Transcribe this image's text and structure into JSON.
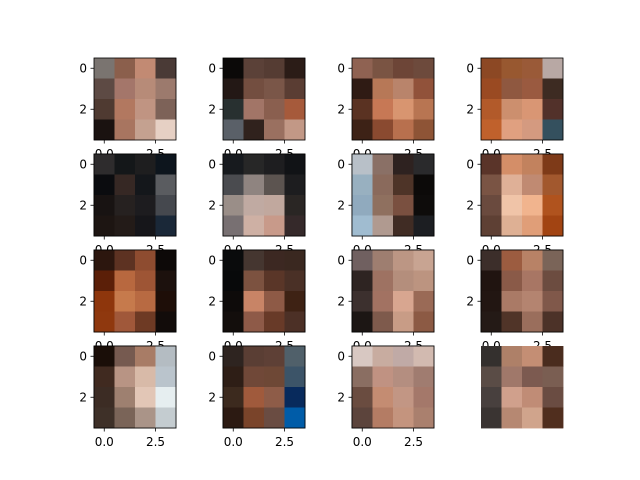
{
  "figure": {
    "background": "#ffffff",
    "axis_color": "#000000"
  },
  "chart_data": [
    {
      "type": "heatmap",
      "grid": false,
      "xlim": [
        -0.5,
        3.5
      ],
      "ylim": [
        3.5,
        -0.5
      ],
      "x_ticks": [],
      "x_tick_labels": [],
      "y_ticks": [
        0,
        2
      ],
      "y_tick_labels": [
        "0",
        "2"
      ],
      "pixels": [
        [
          "#7a7470",
          "#8b5f4c",
          "#c28a73",
          "#4a3a36"
        ],
        [
          "#5d4a44",
          "#a4766a",
          "#b78b78",
          "#9c7a6d"
        ],
        [
          "#4f3a31",
          "#b27860",
          "#c09482",
          "#7d6258"
        ],
        [
          "#1a1210",
          "#a87560",
          "#c4a190",
          "#e6d0c4"
        ]
      ]
    },
    {
      "type": "heatmap",
      "grid": false,
      "xlim": [
        -0.5,
        3.5
      ],
      "ylim": [
        3.5,
        -0.5
      ],
      "x_ticks": [],
      "x_tick_labels": [],
      "y_ticks": [
        0,
        2
      ],
      "y_tick_labels": [
        "0",
        "2"
      ],
      "pixels": [
        [
          "#0b0908",
          "#5b4138",
          "#553c33",
          "#2b1c17"
        ],
        [
          "#231815",
          "#734e40",
          "#7a5648",
          "#5a3d33"
        ],
        [
          "#283030",
          "#a27567",
          "#8a5f4f",
          "#a65a3b"
        ],
        [
          "#5a6068",
          "#30221d",
          "#9a7060",
          "#c29886"
        ]
      ]
    },
    {
      "type": "heatmap",
      "grid": false,
      "xlim": [
        -0.5,
        3.5
      ],
      "ylim": [
        3.5,
        -0.5
      ],
      "x_ticks": [],
      "x_tick_labels": [],
      "y_ticks": [
        0,
        2
      ],
      "y_tick_labels": [
        "0",
        "2"
      ],
      "pixels": [
        [
          "#8f6252",
          "#7a5443",
          "#6d4537",
          "#6d4a3c"
        ],
        [
          "#2f1b14",
          "#b77857",
          "#b9846b",
          "#91523a"
        ],
        [
          "#5a3222",
          "#c77855",
          "#d89570",
          "#b87552"
        ],
        [
          "#3d2216",
          "#8a4a30",
          "#b8704e",
          "#8e5436"
        ]
      ]
    },
    {
      "type": "heatmap",
      "grid": false,
      "xlim": [
        -0.5,
        3.5
      ],
      "ylim": [
        3.5,
        -0.5
      ],
      "x_ticks": [],
      "x_tick_labels": [],
      "y_ticks": [
        0,
        2
      ],
      "y_tick_labels": [
        "0",
        "2"
      ],
      "pixels": [
        [
          "#8c4824",
          "#985830",
          "#9a5a38",
          "#b8a8a4"
        ],
        [
          "#9a4a22",
          "#8f5840",
          "#9a5a40",
          "#3d2b22"
        ],
        [
          "#b25a2a",
          "#cc8f6e",
          "#d99674",
          "#52312a"
        ],
        [
          "#c0612c",
          "#e0a080",
          "#d49a80",
          "#34505e"
        ]
      ]
    },
    {
      "type": "heatmap",
      "grid": false,
      "xlim": [
        -0.5,
        3.5
      ],
      "ylim": [
        3.5,
        -0.5
      ],
      "x_ticks": [],
      "x_tick_labels": [],
      "y_ticks": [
        0,
        2
      ],
      "y_tick_labels": [
        "0",
        "2"
      ],
      "pixels": [
        [
          "#2e2c2d",
          "#141719",
          "#1e1e1f",
          "#0d151d"
        ],
        [
          "#0b0c0f",
          "#362824",
          "#14171b",
          "#5a5c60"
        ],
        [
          "#181312",
          "#262120",
          "#1d1c1f",
          "#45484e"
        ],
        [
          "#1d1512",
          "#231b18",
          "#16161a",
          "#1a2838"
        ]
      ]
    },
    {
      "type": "heatmap",
      "grid": false,
      "xlim": [
        -0.5,
        3.5
      ],
      "ylim": [
        3.5,
        -0.5
      ],
      "x_ticks": [],
      "x_tick_labels": [],
      "y_ticks": [
        0,
        2
      ],
      "y_tick_labels": [
        "0",
        "2"
      ],
      "pixels": [
        [
          "#171a1e",
          "#272727",
          "#1e1e20",
          "#111316"
        ],
        [
          "#4a4b4f",
          "#8f8480",
          "#5c5450",
          "#1d1d1f"
        ],
        [
          "#9a8e88",
          "#c0aaa2",
          "#c1a89e",
          "#2a2624"
        ],
        [
          "#787072",
          "#ceb0a4",
          "#c89a8a",
          "#35292a"
        ]
      ]
    },
    {
      "type": "heatmap",
      "grid": false,
      "xlim": [
        -0.5,
        3.5
      ],
      "ylim": [
        3.5,
        -0.5
      ],
      "x_ticks": [],
      "x_tick_labels": [],
      "y_ticks": [
        0,
        2
      ],
      "y_tick_labels": [
        "0",
        "2"
      ],
      "pixels": [
        [
          "#b8c0c8",
          "#8a7066",
          "#2e2220",
          "#2a2a2c"
        ],
        [
          "#98b0c0",
          "#8a6a5c",
          "#4e3428",
          "#0c0a09"
        ],
        [
          "#90aabe",
          "#8f705f",
          "#7a5040",
          "#0e0c0b"
        ],
        [
          "#a0bcd0",
          "#b09a90",
          "#402c24",
          "#1c1e22"
        ]
      ]
    },
    {
      "type": "heatmap",
      "grid": false,
      "xlim": [
        -0.5,
        3.5
      ],
      "ylim": [
        3.5,
        -0.5
      ],
      "x_ticks": [],
      "x_tick_labels": [],
      "y_ticks": [
        0,
        2
      ],
      "y_tick_labels": [
        "0",
        "2"
      ],
      "pixels": [
        [
          "#5a3429",
          "#d48e68",
          "#c2825e",
          "#7e3a18"
        ],
        [
          "#7a5444",
          "#dfb097",
          "#c08a72",
          "#a2582e"
        ],
        [
          "#6a4a3e",
          "#f0c4a8",
          "#f1b48e",
          "#b0531e"
        ],
        [
          "#5e4034",
          "#deb094",
          "#e09e78",
          "#a24412"
        ]
      ]
    },
    {
      "type": "heatmap",
      "grid": false,
      "xlim": [
        -0.5,
        3.5
      ],
      "ylim": [
        3.5,
        -0.5
      ],
      "x_ticks": [],
      "x_tick_labels": [],
      "y_ticks": [
        0,
        2
      ],
      "y_tick_labels": [
        "0",
        "2"
      ],
      "pixels": [
        [
          "#2c160e",
          "#5d3222",
          "#8e4c30",
          "#0d0908"
        ],
        [
          "#5b1f08",
          "#b8683f",
          "#9e5535",
          "#1c110d"
        ],
        [
          "#8e360c",
          "#c67a4c",
          "#b86a42",
          "#1e0e08"
        ],
        [
          "#8f380e",
          "#a0583a",
          "#6e3a24",
          "#120c0a"
        ]
      ]
    },
    {
      "type": "heatmap",
      "grid": false,
      "xlim": [
        -0.5,
        3.5
      ],
      "ylim": [
        3.5,
        -0.5
      ],
      "x_ticks": [],
      "x_tick_labels": [],
      "y_ticks": [
        0,
        2
      ],
      "y_tick_labels": [
        "0",
        "2"
      ],
      "pixels": [
        [
          "#0a0b0c",
          "#453630",
          "#3c2822",
          "#3a2820"
        ],
        [
          "#08090a",
          "#7c5240",
          "#5a3628",
          "#4a3026"
        ],
        [
          "#0e0b0a",
          "#c88466",
          "#8e5a46",
          "#3e2214"
        ],
        [
          "#130e0c",
          "#8e5a48",
          "#683a28",
          "#4c3026"
        ]
      ]
    },
    {
      "type": "heatmap",
      "grid": false,
      "xlim": [
        -0.5,
        3.5
      ],
      "ylim": [
        3.5,
        -0.5
      ],
      "x_ticks": [],
      "x_tick_labels": [],
      "y_ticks": [
        0,
        2
      ],
      "y_tick_labels": [
        "0",
        "2"
      ],
      "pixels": [
        [
          "#706060",
          "#9e7e70",
          "#bc9684",
          "#c8a492"
        ],
        [
          "#2e2422",
          "#9e7262",
          "#b48e7c",
          "#bc9480"
        ],
        [
          "#3c302e",
          "#a27262",
          "#d8a690",
          "#9a6a56"
        ],
        [
          "#1c1614",
          "#7e5a4c",
          "#c89c86",
          "#8c5a44"
        ]
      ]
    },
    {
      "type": "heatmap",
      "grid": false,
      "xlim": [
        -0.5,
        3.5
      ],
      "ylim": [
        3.5,
        -0.5
      ],
      "x_ticks": [],
      "x_tick_labels": [],
      "y_ticks": [
        0,
        2
      ],
      "y_tick_labels": [
        "0",
        "2"
      ],
      "pixels": [
        [
          "#3c2e2a",
          "#9c5c40",
          "#b88266",
          "#7a6458"
        ],
        [
          "#201410",
          "#8a5a48",
          "#a87664",
          "#6c4c40"
        ],
        [
          "#221612",
          "#aa7a66",
          "#b48470",
          "#80584a"
        ],
        [
          "#241a16",
          "#503428",
          "#9a6e5c",
          "#4c3228"
        ]
      ]
    },
    {
      "type": "heatmap",
      "grid": false,
      "xlim": [
        -0.5,
        3.5
      ],
      "ylim": [
        3.5,
        -0.5
      ],
      "x_ticks": [],
      "x_tick_labels": [],
      "y_ticks": [
        0,
        2
      ],
      "y_tick_labels": [
        "0",
        "2"
      ],
      "pixels": [
        [
          "#1a0e08",
          "#765a50",
          "#a87c66",
          "#b4bcc2"
        ],
        [
          "#402a20",
          "#b89484",
          "#d8baa8",
          "#bac4cc"
        ],
        [
          "#3c2c24",
          "#9e8070",
          "#e2c6b6",
          "#e6eef0"
        ],
        [
          "#3e3028",
          "#7a6458",
          "#aa9488",
          "#c4ccd0"
        ]
      ]
    },
    {
      "type": "heatmap",
      "grid": false,
      "xlim": [
        -0.5,
        3.5
      ],
      "ylim": [
        3.5,
        -0.5
      ],
      "x_ticks": [],
      "x_tick_labels": [],
      "y_ticks": [
        0,
        2
      ],
      "y_tick_labels": [
        "0",
        "2"
      ],
      "pixels": [
        [
          "#2e2420",
          "#5a3e34",
          "#5e4036",
          "#50606a"
        ],
        [
          "#2e1e16",
          "#704838",
          "#6e4836",
          "#3c5468"
        ],
        [
          "#3c2a1e",
          "#a05a3c",
          "#8e5c48",
          "#082a5c"
        ],
        [
          "#2c1a12",
          "#7a442a",
          "#6a4c42",
          "#005ca8"
        ]
      ]
    },
    {
      "type": "heatmap",
      "grid": false,
      "xlim": [
        -0.5,
        3.5
      ],
      "ylim": [
        3.5,
        -0.5
      ],
      "x_ticks": [],
      "x_tick_labels": [],
      "y_ticks": [
        0,
        2
      ],
      "y_tick_labels": [
        "0",
        "2"
      ],
      "pixels": [
        [
          "#d8c8c2",
          "#c8aca0",
          "#c0aaa6",
          "#d2bab0"
        ],
        [
          "#8a6e62",
          "#c09282",
          "#b48e80",
          "#a07c70"
        ],
        [
          "#6a4c40",
          "#c48c72",
          "#c29684",
          "#a4786a"
        ],
        [
          "#5c443c",
          "#b47c64",
          "#c4947e",
          "#aa806e"
        ]
      ]
    },
    {
      "type": "heatmap",
      "grid": false,
      "xlim": [
        -0.5,
        3.5
      ],
      "ylim": [
        3.5,
        -0.5
      ],
      "x_ticks": [],
      "x_tick_labels": [],
      "y_ticks": [],
      "y_tick_labels": [],
      "axis_visible": false,
      "pixels": [
        [
          "#34302e",
          "#ae8068",
          "#c48e74",
          "#4a2c1e"
        ],
        [
          "#5a4c46",
          "#a0786a",
          "#7c5a50",
          "#7a5e52"
        ],
        [
          "#48403e",
          "#d0a08c",
          "#c08c76",
          "#6a4c42"
        ],
        [
          "#3a3432",
          "#b68872",
          "#d0a48c",
          "#502e1e"
        ]
      ]
    }
  ],
  "bottom_row_x_tick_labels": [
    "0.0",
    "2.5"
  ],
  "clipped_x_tick_labels": [
    "0.0",
    "2.5"
  ]
}
